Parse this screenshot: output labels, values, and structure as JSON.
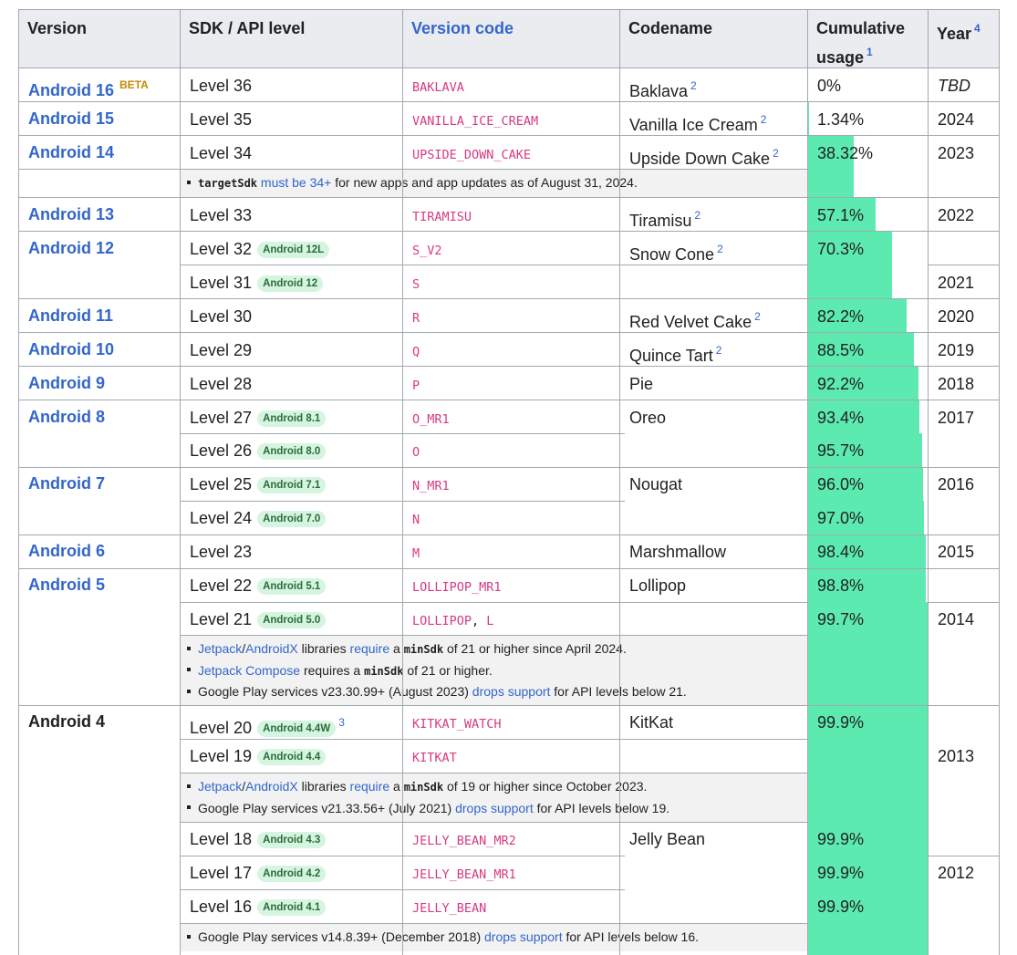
{
  "header": {
    "version": "Version",
    "sdk": "SDK / API level",
    "version_code": "Version code",
    "codename": "Codename",
    "usage_line1": "Cumulative",
    "usage_line2": "usage",
    "usage_sup": "1",
    "year": "Year",
    "year_sup": "4"
  },
  "versions": {
    "a16": "Android 16",
    "a16_beta": "BETA",
    "a15": "Android 15",
    "a14": "Android 14",
    "a13": "Android 13",
    "a12": "Android 12",
    "a11": "Android 11",
    "a10": "Android 10",
    "a9": "Android 9",
    "a8": "Android 8",
    "a7": "Android 7",
    "a6": "Android 6",
    "a5": "Android 5",
    "a4": "Android 4"
  },
  "levels": {
    "l36": "Level 36",
    "l35": "Level 35",
    "l34": "Level 34",
    "l33": "Level 33",
    "l32": "Level 32",
    "l31": "Level 31",
    "l30": "Level 30",
    "l29": "Level 29",
    "l28": "Level 28",
    "l27": "Level 27",
    "l26": "Level 26",
    "l25": "Level 25",
    "l24": "Level 24",
    "l23": "Level 23",
    "l22": "Level 22",
    "l21": "Level 21",
    "l20": "Level 20",
    "l19": "Level 19",
    "l18": "Level 18",
    "l17": "Level 17",
    "l16": "Level 16"
  },
  "badges": {
    "b32": "Android 12L",
    "b31": "Android 12",
    "b27": "Android 8.1",
    "b26": "Android 8.0",
    "b25": "Android 7.1",
    "b24": "Android 7.0",
    "b22": "Android 5.1",
    "b21": "Android 5.0",
    "b20": "Android 4.4W",
    "b20_sup": "3",
    "b19": "Android 4.4",
    "b18": "Android 4.3",
    "b17": "Android 4.2",
    "b16": "Android 4.1"
  },
  "codes": {
    "c36": "BAKLAVA",
    "c35": "VANILLA_ICE_CREAM",
    "c34": "UPSIDE_DOWN_CAKE",
    "c33": "TIRAMISU",
    "c32": "S_V2",
    "c31": "S",
    "c30": "R",
    "c29": "Q",
    "c28": "P",
    "c27": "O_MR1",
    "c26": "O",
    "c25": "N_MR1",
    "c24": "N",
    "c23": "M",
    "c22": "LOLLIPOP_MR1",
    "c21a": "LOLLIPOP",
    "c21sep": ", ",
    "c21b": "L",
    "c20": "KITKAT_WATCH",
    "c19": "KITKAT",
    "c18": "JELLY_BEAN_MR2",
    "c17": "JELLY_BEAN_MR1",
    "c16": "JELLY_BEAN"
  },
  "codenames": {
    "n36": "Baklava",
    "n35": "Vanilla Ice Cream",
    "n34": "Upside Down Cake",
    "n33": "Tiramisu",
    "n32": "Snow Cone",
    "n30": "Red Velvet Cake",
    "n29": "Quince Tart",
    "n28": "Pie",
    "n27": "Oreo",
    "n25": "Nougat",
    "n23": "Marshmallow",
    "n22": "Lollipop",
    "n20": "KitKat",
    "n18": "Jelly Bean",
    "sup": "2"
  },
  "usage": {
    "u36": "0%",
    "u35": "1.34%",
    "u34": "38.32%",
    "u33": "57.1%",
    "u32": "70.3%",
    "u30": "82.2%",
    "u29": "88.5%",
    "u28": "92.2%",
    "u27": "93.4%",
    "u26": "95.7%",
    "u25": "96.0%",
    "u24": "97.0%",
    "u23": "98.4%",
    "u22": "98.8%",
    "u21": "99.7%",
    "u20": "99.9%",
    "u18": "99.9%",
    "u17": "99.9%",
    "u16": "99.9%"
  },
  "usage_fractions": [
    0,
    0.0134,
    0.3832,
    0.571,
    0.703,
    0.822,
    0.885,
    0.922,
    0.934,
    0.957,
    0.96,
    0.97,
    0.984,
    0.988,
    0.997,
    0.999,
    0.999,
    0.999,
    0.999
  ],
  "years": {
    "y36": "TBD",
    "y35": "2024",
    "y34": "2023",
    "y33": "2022",
    "y31": "2021",
    "y30": "2020",
    "y29": "2019",
    "y28": "2018",
    "y27": "2017",
    "y25": "2016",
    "y23": "2015",
    "y21": "2014",
    "y19": "2013",
    "y17": "2012"
  },
  "notes": {
    "n34_code": "targetSdk",
    "n34_link": "must be 34+",
    "n34_rest": " for new apps and app updates as of August 31, 2024.",
    "jetpack": "Jetpack",
    "slash": "/",
    "androidx": "AndroidX",
    "libraries": " libraries ",
    "require": "require",
    "a": " a ",
    "minsdk": "minSdk",
    "n21_a_rest": " of 21 or higher since April 2024.",
    "compose": "Jetpack Compose",
    "requires_a": " requires a ",
    "n21_b_rest": " of 21 or higher.",
    "gps23": "Google Play services v23.30.99+ (August 2023) ",
    "drops": "drops support",
    "n21_c_rest": " for API levels below 21.",
    "n19_a_rest": " of 19 or higher since October 2023.",
    "gps21": "Google Play services v21.33.56+ (July 2021) ",
    "n19_b_rest": " for API levels below 19.",
    "gps14": "Google Play services v14.8.39+ (December 2018) ",
    "n16_rest": " for API levels below 16."
  },
  "colors": {
    "bar": "#5deab1",
    "link": "#3366cc",
    "code": "#d73a82",
    "header_bg": "#eaecf0",
    "note_bg": "#f2f2f2",
    "beta": "#c28a00"
  }
}
